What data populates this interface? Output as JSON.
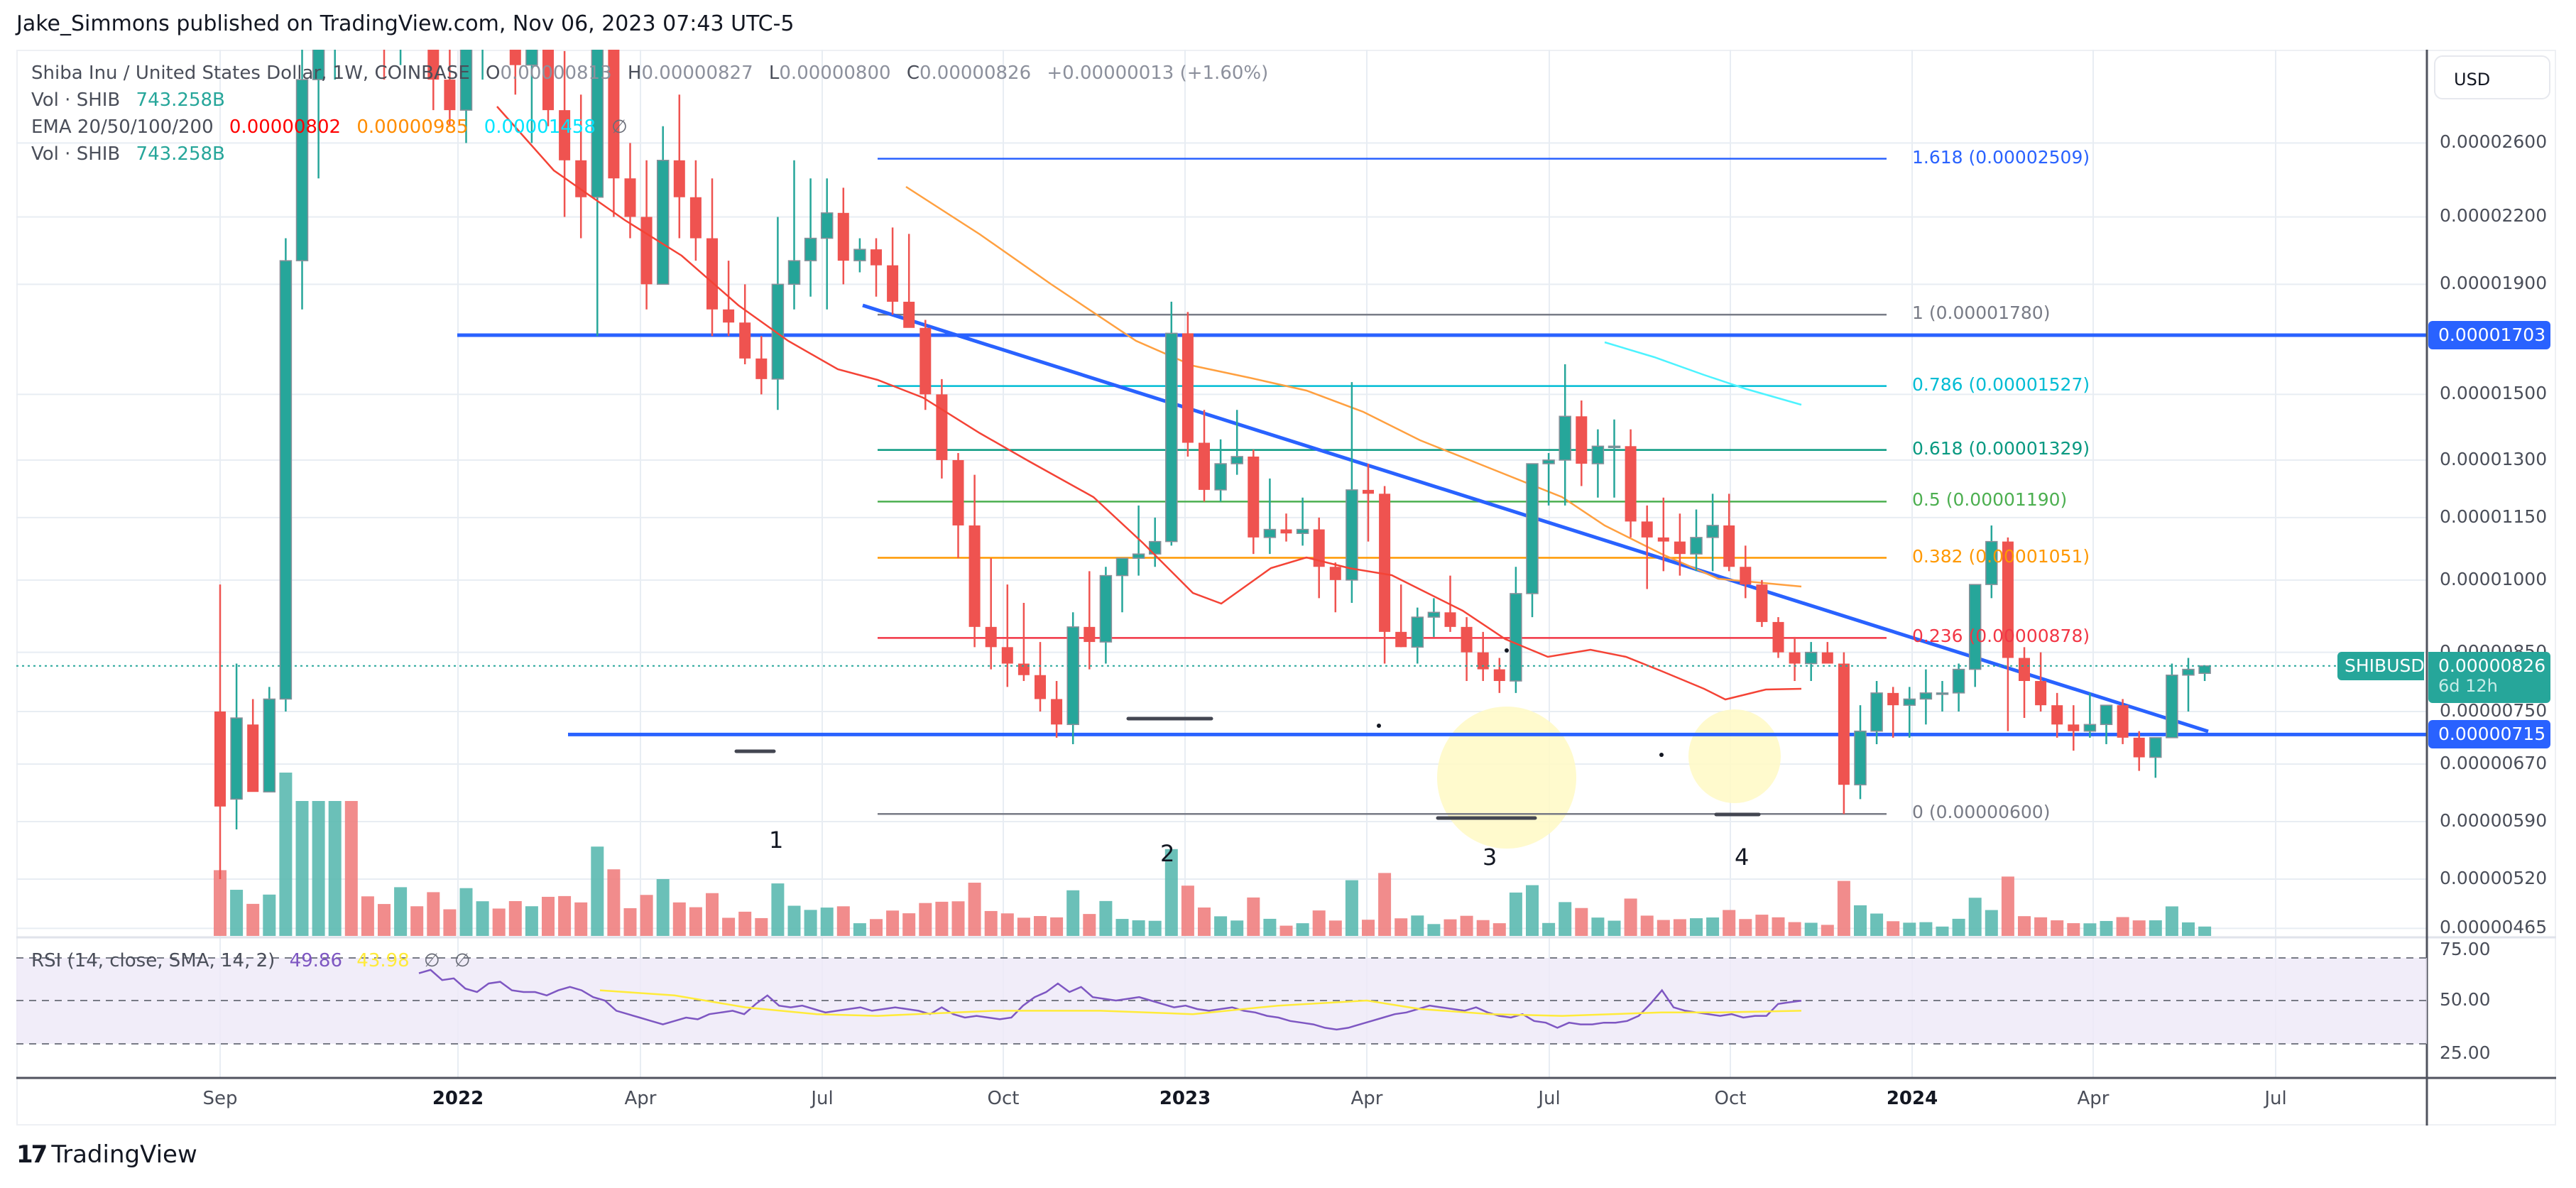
{
  "header": {
    "published": "Jake_Simmons published on TradingView.com, Nov 06, 2023 07:43 UTC-5"
  },
  "legend": {
    "symbol": "Shiba Inu / United States Dollar, 1W, COINBASE",
    "open_label": "O",
    "open": "0.00000813",
    "high_label": "H",
    "high": "0.00000827",
    "low_label": "L",
    "low": "0.00000800",
    "close_label": "C",
    "close": "0.00000826",
    "change": "+0.00000013 (+1.60%)",
    "vol1_label": "Vol · SHIB",
    "vol1_value": "743.258B",
    "ema_label": "EMA 20/50/100/200",
    "ema20": "0.00000802",
    "ema50": "0.00000985",
    "ema100": "0.00001458",
    "ema200": "∅",
    "vol2_label": "Vol · SHIB",
    "vol2_value": "743.258B"
  },
  "price_axis": {
    "currency": "USD",
    "ticks": [
      "0.00002600",
      "0.00002200",
      "0.00001900",
      "0.00001500",
      "0.00001300",
      "0.00001150",
      "0.00001000",
      "0.00000850",
      "0.00000750",
      "0.00000670",
      "0.00000590",
      "0.00000520",
      "0.00000465"
    ],
    "resistance_tag": "0.00001703",
    "support_tag": "0.00000715",
    "symbol_tag": "SHIBUSD",
    "last_price_tag": "0.00000826",
    "countdown": "6d 12h"
  },
  "fib_levels": [
    {
      "label": "1.618 (0.00002509)",
      "ratio": 1.618,
      "price": 2.509e-05,
      "color": "#2962ff"
    },
    {
      "label": "1 (0.00001780)",
      "ratio": 1,
      "price": 1.78e-05,
      "color": "#787b86"
    },
    {
      "label": "0.786 (0.00001527)",
      "ratio": 0.786,
      "price": 1.527e-05,
      "color": "#00bcd4"
    },
    {
      "label": "0.618 (0.00001329)",
      "ratio": 0.618,
      "price": 1.329e-05,
      "color": "#089981"
    },
    {
      "label": "0.5 (0.00001190)",
      "ratio": 0.5,
      "price": 1.19e-05,
      "color": "#4caf50"
    },
    {
      "label": "0.382 (0.00001051)",
      "ratio": 0.382,
      "price": 1.051e-05,
      "color": "#ff9800"
    },
    {
      "label": "0.236 (0.00000878)",
      "ratio": 0.236,
      "price": 8.78e-06,
      "color": "#f23645"
    },
    {
      "label": "0 (0.00000600)",
      "ratio": 0,
      "price": 6e-06,
      "color": "#787b86"
    }
  ],
  "wave_labels": [
    "1",
    "2",
    "3",
    "4"
  ],
  "rsi": {
    "label": "RSI (14, close, SMA, 14, 2)",
    "value": "49.86",
    "sma": "43.98",
    "extra1": "∅",
    "extra2": "∅",
    "ticks": [
      "75.00",
      "50.00",
      "25.00"
    ]
  },
  "time_axis": {
    "labels": [
      {
        "text": "Sep",
        "bold": false
      },
      {
        "text": "2022",
        "bold": true
      },
      {
        "text": "Apr",
        "bold": false
      },
      {
        "text": "Jul",
        "bold": false
      },
      {
        "text": "Oct",
        "bold": false
      },
      {
        "text": "2023",
        "bold": true
      },
      {
        "text": "Apr",
        "bold": false
      },
      {
        "text": "Jul",
        "bold": false
      },
      {
        "text": "Oct",
        "bold": false
      },
      {
        "text": "2024",
        "bold": true
      },
      {
        "text": "Apr",
        "bold": false
      },
      {
        "text": "Jul",
        "bold": false
      }
    ]
  },
  "footer": {
    "logo_glyph": "17",
    "brand": "TradingView"
  },
  "colors": {
    "up": "#26a69a",
    "down": "#ef5350",
    "trendline": "#2962ff",
    "ema20": "#f44336",
    "ema50": "#ffa040",
    "ema100": "#4df3ff",
    "rsi": "#7e57c2",
    "rsi_sma": "#ffeb3b",
    "highlight": "#fff9c4"
  },
  "chart_data": {
    "type": "candlestick",
    "title": "Shiba Inu / United States Dollar, 1W, COINBASE",
    "xlabel": "",
    "ylabel": "USD",
    "y_scale": "log",
    "ylim": [
      4.65e-06,
      2.8e-05
    ],
    "x_ticks": [
      "Sep",
      "2022",
      "Apr",
      "Jul",
      "Oct",
      "2023",
      "Apr",
      "Jul",
      "Oct",
      "2024",
      "Apr",
      "Jul"
    ],
    "y_ticks": [
      2.6e-05,
      2.2e-05,
      1.9e-05,
      1.5e-05,
      1.3e-05,
      1.15e-05,
      1e-05,
      8.5e-06,
      7.5e-06,
      6.7e-06,
      5.9e-06,
      5.2e-06,
      4.65e-06
    ],
    "last": {
      "open": 8.13e-06,
      "high": 8.27e-06,
      "low": 8e-06,
      "close": 8.26e-06,
      "change": 1.3e-07,
      "change_pct": 1.6
    },
    "horizontal_levels": {
      "resistance": 1.703e-05,
      "support": 7.15e-06
    },
    "descending_trendline": {
      "from": {
        "date": "2022-07",
        "price": 1.83e-05
      },
      "to": {
        "date": "2024-05",
        "price": 7.15e-06
      }
    },
    "fibonacci": [
      {
        "ratio": 1.618,
        "price": 2.509e-05
      },
      {
        "ratio": 1,
        "price": 1.78e-05
      },
      {
        "ratio": 0.786,
        "price": 1.527e-05
      },
      {
        "ratio": 0.618,
        "price": 1.329e-05
      },
      {
        "ratio": 0.5,
        "price": 1.19e-05
      },
      {
        "ratio": 0.382,
        "price": 1.051e-05
      },
      {
        "ratio": 0.236,
        "price": 8.78e-06
      },
      {
        "ratio": 0,
        "price": 6e-06
      }
    ],
    "ema": {
      "ema20": 8.02e-06,
      "ema50": 9.85e-06,
      "ema100": 1.458e-05,
      "ema200": null
    },
    "volume_last": "743.258B",
    "rsi": {
      "period": 14,
      "value": 49.86,
      "sma": 43.98,
      "levels": [
        75,
        50,
        25
      ]
    },
    "annotations": [
      {
        "text": "1",
        "date": "2022-06"
      },
      {
        "text": "2",
        "date": "2022-12"
      },
      {
        "text": "3",
        "date": "2023-06"
      },
      {
        "text": "4",
        "date": "2023-10"
      }
    ],
    "candles_x0": 310,
    "candle_step": 23.1,
    "candles": [
      [
        7.5,
        9.9,
        5.2,
        6.1
      ],
      [
        6.2,
        8.3,
        5.8,
        7.4
      ],
      [
        7.3,
        7.7,
        6.5,
        6.3
      ],
      [
        6.3,
        7.9,
        6.3,
        7.7
      ],
      [
        7.7,
        21,
        7.5,
        20
      ],
      [
        20,
        33,
        18,
        30
      ],
      [
        30,
        42,
        24,
        38
      ],
      [
        38,
        44,
        30,
        42
      ],
      [
        42,
        44,
        36,
        40
      ],
      [
        40,
        50,
        34,
        36
      ],
      [
        36,
        40,
        30,
        33
      ],
      [
        33,
        45,
        31,
        40
      ],
      [
        40,
        42,
        34,
        36
      ],
      [
        36,
        38,
        28,
        30
      ],
      [
        30,
        34,
        27,
        28
      ],
      [
        28,
        37,
        26,
        34
      ],
      [
        34,
        40,
        30,
        38
      ],
      [
        38,
        41,
        33,
        35
      ],
      [
        35,
        38,
        29,
        31
      ],
      [
        31,
        35,
        26,
        33
      ],
      [
        33,
        35,
        27,
        28
      ],
      [
        28,
        32,
        22,
        25
      ],
      [
        25,
        29,
        21,
        23
      ],
      [
        23,
        36,
        17,
        33
      ],
      [
        33,
        34,
        22,
        24
      ],
      [
        24,
        26,
        21,
        22
      ],
      [
        22,
        25,
        18,
        19
      ],
      [
        19,
        27,
        19,
        25
      ],
      [
        25,
        29,
        21,
        23
      ],
      [
        23,
        25,
        20,
        21
      ],
      [
        21,
        24,
        17,
        18
      ],
      [
        18,
        20,
        17,
        17.5
      ],
      [
        17.5,
        19,
        16,
        16.2
      ],
      [
        16.2,
        17,
        15,
        15.5
      ],
      [
        15.5,
        22,
        14.5,
        19
      ],
      [
        19,
        25,
        18,
        20
      ],
      [
        20,
        24,
        18.5,
        21
      ],
      [
        21,
        24,
        18,
        22.2
      ],
      [
        22.2,
        23.5,
        19,
        20
      ],
      [
        20,
        21,
        19.5,
        20.5
      ],
      [
        20.5,
        21,
        18.5,
        19.8
      ],
      [
        19.8,
        21.5,
        17.8,
        18.3
      ],
      [
        18.3,
        21.2,
        17.6,
        17.3
      ],
      [
        17.3,
        17.6,
        14.5,
        15
      ],
      [
        15,
        15.5,
        12.5,
        13
      ],
      [
        13,
        13.2,
        10.5,
        11.3
      ],
      [
        11.3,
        12.6,
        8.6,
        9.0
      ],
      [
        9.0,
        10.5,
        8.2,
        8.6
      ],
      [
        8.6,
        9.9,
        7.9,
        8.3
      ],
      [
        8.3,
        9.5,
        8.0,
        8.1
      ],
      [
        8.1,
        8.7,
        7.5,
        7.7
      ],
      [
        7.7,
        8.0,
        7.1,
        7.3
      ],
      [
        7.3,
        9.3,
        7.0,
        9.0
      ],
      [
        9.0,
        10.2,
        8.2,
        8.7
      ],
      [
        8.7,
        10.3,
        8.3,
        10.1
      ],
      [
        10.1,
        10.5,
        9.3,
        10.5
      ],
      [
        10.5,
        11.8,
        10.1,
        10.6
      ],
      [
        10.6,
        11.5,
        10.3,
        10.9
      ],
      [
        10.9,
        18.3,
        10.8,
        17.1
      ],
      [
        17.1,
        17.9,
        13.1,
        13.5
      ],
      [
        13.5,
        14.5,
        11.9,
        12.2
      ],
      [
        12.2,
        13.6,
        11.9,
        12.9
      ],
      [
        12.9,
        14.5,
        12.6,
        13.1
      ],
      [
        13.1,
        13.3,
        10.6,
        11.0
      ],
      [
        11.0,
        12.5,
        10.6,
        11.2
      ],
      [
        11.2,
        11.6,
        10.9,
        11.1
      ],
      [
        11.1,
        12.0,
        10.8,
        11.2
      ],
      [
        11.2,
        11.5,
        9.6,
        10.3
      ],
      [
        10.3,
        10.4,
        9.3,
        10.0
      ],
      [
        10.0,
        15.4,
        9.5,
        12.2
      ],
      [
        12.2,
        12.9,
        10.9,
        12.1
      ],
      [
        12.1,
        12.3,
        8.3,
        8.9
      ],
      [
        8.9,
        9.9,
        8.6,
        8.6
      ],
      [
        8.6,
        9.4,
        8.3,
        9.2
      ],
      [
        9.2,
        9.6,
        8.8,
        9.3
      ],
      [
        9.3,
        10.1,
        8.9,
        9.0
      ],
      [
        9.0,
        9.2,
        8.0,
        8.5
      ],
      [
        8.5,
        8.9,
        8.0,
        8.2
      ],
      [
        8.2,
        8.4,
        7.8,
        8.0
      ],
      [
        8.0,
        10.3,
        7.8,
        9.7
      ],
      [
        9.7,
        11.5,
        9.2,
        12.9
      ],
      [
        12.9,
        13.2,
        11.8,
        13.0
      ],
      [
        13.0,
        16.0,
        11.8,
        14.3
      ],
      [
        14.3,
        14.8,
        12.3,
        12.9
      ],
      [
        12.9,
        13.9,
        12.0,
        13.4
      ],
      [
        13.4,
        14.2,
        12.0,
        13.4
      ],
      [
        13.4,
        13.9,
        11.0,
        11.4
      ],
      [
        11.4,
        11.8,
        9.8,
        11.0
      ],
      [
        11.0,
        12.0,
        10.2,
        10.9
      ],
      [
        10.9,
        11.6,
        10.1,
        10.6
      ],
      [
        10.6,
        11.7,
        10.2,
        11.0
      ],
      [
        11.0,
        12.1,
        10.2,
        11.3
      ],
      [
        11.3,
        12.1,
        10.2,
        10.3
      ],
      [
        10.3,
        10.8,
        9.6,
        9.9
      ],
      [
        9.9,
        10.0,
        9.0,
        9.1
      ],
      [
        9.1,
        9.2,
        8.4,
        8.5
      ],
      [
        8.5,
        8.8,
        8.0,
        8.3
      ],
      [
        8.3,
        8.7,
        8.0,
        8.5
      ],
      [
        8.5,
        8.7,
        8.3,
        8.3
      ],
      [
        8.3,
        8.5,
        6.0,
        6.4
      ],
      [
        6.4,
        7.6,
        6.2,
        7.2
      ],
      [
        7.2,
        8.0,
        7.0,
        7.8
      ],
      [
        7.8,
        7.9,
        7.1,
        7.6
      ],
      [
        7.6,
        7.9,
        7.1,
        7.7
      ],
      [
        7.7,
        8.2,
        7.3,
        7.8
      ],
      [
        7.8,
        8.0,
        7.5,
        7.8
      ],
      [
        7.8,
        8.3,
        7.5,
        8.2
      ],
      [
        8.2,
        9.6,
        7.9,
        9.9
      ],
      [
        9.9,
        11.3,
        9.6,
        10.9
      ],
      [
        10.9,
        11.0,
        7.2,
        8.4
      ],
      [
        8.4,
        8.6,
        7.4,
        8.0
      ],
      [
        8.0,
        8.5,
        7.5,
        7.6
      ],
      [
        7.6,
        7.8,
        7.1,
        7.3
      ],
      [
        7.3,
        7.6,
        6.9,
        7.2
      ],
      [
        7.2,
        7.8,
        7.1,
        7.3
      ],
      [
        7.3,
        7.6,
        7.0,
        7.6
      ],
      [
        7.6,
        7.7,
        7.0,
        7.1
      ],
      [
        7.1,
        7.2,
        6.6,
        6.8
      ],
      [
        6.8,
        7.1,
        6.5,
        7.1
      ],
      [
        7.1,
        8.3,
        7.1,
        8.1
      ],
      [
        8.1,
        8.4,
        7.5,
        8.2
      ],
      [
        8.13,
        8.27,
        8.0,
        8.26
      ]
    ],
    "candle_unit": 1e-06
  }
}
